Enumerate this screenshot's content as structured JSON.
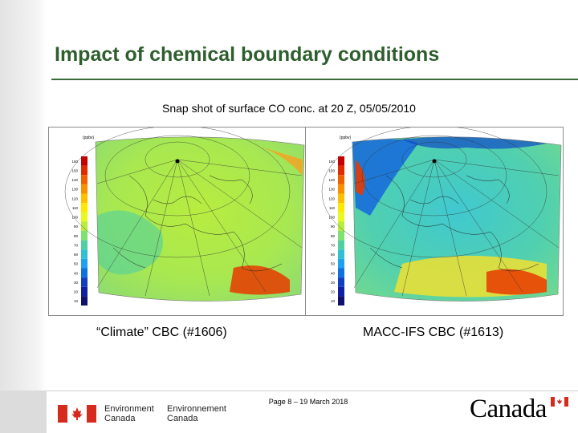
{
  "slide": {
    "title": "Impact of chemical boundary conditions",
    "subtitle": "Snap shot of surface CO conc. at 20 Z, 05/05/2010"
  },
  "panels": [
    {
      "caption": "“Climate” CBC (#1606)",
      "colorbar_unit": "(ppbv)",
      "colorbar_labels": [
        "160",
        "150",
        "140",
        "130",
        "120",
        "110",
        "100",
        "90",
        "80",
        "70",
        "60",
        "50",
        "40",
        "30",
        "20",
        "10"
      ]
    },
    {
      "caption": "MACC-IFS CBC (#1613)",
      "colorbar_unit": "(ppbv)",
      "colorbar_labels": [
        "160",
        "150",
        "140",
        "130",
        "120",
        "110",
        "100",
        "90",
        "80",
        "70",
        "60",
        "50",
        "40",
        "30",
        "20",
        "10"
      ]
    }
  ],
  "colorbar_colors": [
    "#c40000",
    "#e02a00",
    "#f06000",
    "#f89000",
    "#fdc000",
    "#ffe800",
    "#e8f820",
    "#b8ec40",
    "#80e070",
    "#50d0a0",
    "#30c0d0",
    "#20a0f0",
    "#1070e0",
    "#1040c0",
    "#1020a0",
    "#101070"
  ],
  "footer": {
    "page": "Page 8 – 19 March 2018",
    "signature_en_1": "Environment",
    "signature_en_2": "Canada",
    "signature_fr_1": "Environnement",
    "signature_fr_2": "Canada",
    "wordmark": "Canada"
  },
  "colors": {
    "title": "#2e5d2e",
    "flag_red": "#d52b1e"
  }
}
